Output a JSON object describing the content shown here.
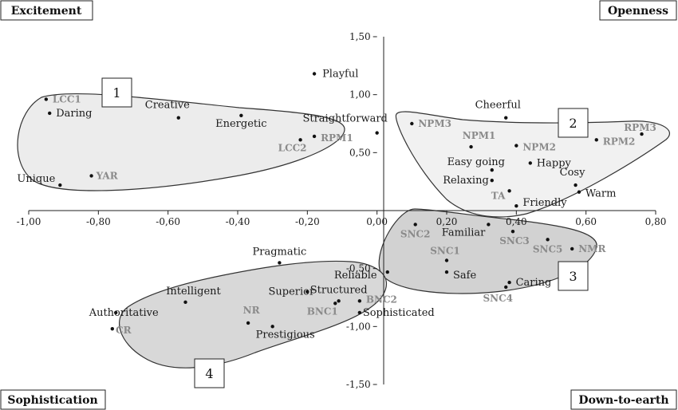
{
  "chart_data": {
    "type": "scatter",
    "xlim": [
      -1.0,
      0.8
    ],
    "ylim": [
      -1.5,
      1.5
    ],
    "x_ticks": [
      "-1,00",
      "-0,80",
      "-0,60",
      "-0,40",
      "-0,20",
      "0,00",
      "0,20",
      "0,40",
      "0,60",
      "0,80"
    ],
    "y_ticks": [
      "1,50",
      "1,00",
      "0,50",
      "0,00",
      "-0,50",
      "-1,00",
      "-1,50"
    ],
    "corners": {
      "top_left": "Excitement",
      "top_right": "Openness",
      "bottom_left": "Sophistication",
      "bottom_right": "Down-to-earth"
    },
    "clusters": [
      "1",
      "2",
      "3",
      "4"
    ],
    "points": [
      {
        "label": "LCC1",
        "x": -0.95,
        "y": 0.96,
        "style": "code"
      },
      {
        "label": "Daring",
        "x": -0.94,
        "y": 0.84,
        "style": "text"
      },
      {
        "label": "Unique",
        "x": -0.91,
        "y": 0.22,
        "style": "text"
      },
      {
        "label": "YAR",
        "x": -0.82,
        "y": 0.3,
        "style": "code"
      },
      {
        "label": "Creative",
        "x": -0.57,
        "y": 0.8,
        "style": "text"
      },
      {
        "label": "Energetic",
        "x": -0.39,
        "y": 0.82,
        "style": "text"
      },
      {
        "label": "Playful",
        "x": -0.18,
        "y": 1.18,
        "style": "text"
      },
      {
        "label": "Straightforward",
        "x": 0.0,
        "y": 0.67,
        "style": "text"
      },
      {
        "label": "RPM1",
        "x": -0.18,
        "y": 0.64,
        "style": "code"
      },
      {
        "label": "LCC2",
        "x": -0.22,
        "y": 0.61,
        "style": "code"
      },
      {
        "label": "Cheerful",
        "x": 0.37,
        "y": 0.8,
        "style": "text"
      },
      {
        "label": "NPM3",
        "x": 0.1,
        "y": 0.75,
        "style": "code"
      },
      {
        "label": "NPM1",
        "x": 0.27,
        "y": 0.55,
        "style": "code"
      },
      {
        "label": "NPM2",
        "x": 0.4,
        "y": 0.56,
        "style": "code"
      },
      {
        "label": "RPM3",
        "x": 0.76,
        "y": 0.66,
        "style": "code"
      },
      {
        "label": "RPM2",
        "x": 0.63,
        "y": 0.61,
        "style": "code"
      },
      {
        "label": "Easy going",
        "x": 0.33,
        "y": 0.35,
        "style": "text"
      },
      {
        "label": "Happy",
        "x": 0.44,
        "y": 0.41,
        "style": "text"
      },
      {
        "label": "Relaxing",
        "x": 0.33,
        "y": 0.26,
        "style": "text"
      },
      {
        "label": "Cosy",
        "x": 0.57,
        "y": 0.22,
        "style": "text"
      },
      {
        "label": "Warm",
        "x": 0.58,
        "y": 0.16,
        "style": "text"
      },
      {
        "label": "TA",
        "x": 0.38,
        "y": 0.17,
        "style": "code"
      },
      {
        "label": "Friendly",
        "x": 0.4,
        "y": 0.04,
        "style": "text"
      },
      {
        "label": "SNC2",
        "x": 0.11,
        "y": -0.12,
        "style": "code"
      },
      {
        "label": "Familiar",
        "x": 0.32,
        "y": -0.12,
        "style": "text"
      },
      {
        "label": "SNC3",
        "x": 0.39,
        "y": -0.18,
        "style": "code"
      },
      {
        "label": "SNC5",
        "x": 0.49,
        "y": -0.25,
        "style": "code"
      },
      {
        "label": "NMR",
        "x": 0.56,
        "y": -0.33,
        "style": "code"
      },
      {
        "label": "SNC1",
        "x": 0.2,
        "y": -0.43,
        "style": "code"
      },
      {
        "label": "Safe",
        "x": 0.2,
        "y": -0.53,
        "style": "text"
      },
      {
        "label": "Reliable",
        "x": 0.03,
        "y": -0.53,
        "style": "text"
      },
      {
        "label": "Caring",
        "x": 0.38,
        "y": -0.62,
        "style": "text"
      },
      {
        "label": "SNC4",
        "x": 0.37,
        "y": -0.66,
        "style": "code"
      },
      {
        "label": "Pragmatic",
        "x": -0.28,
        "y": -0.45,
        "style": "text"
      },
      {
        "label": "Intelligent",
        "x": -0.55,
        "y": -0.79,
        "style": "text"
      },
      {
        "label": "Superior",
        "x": -0.2,
        "y": -0.7,
        "style": "text"
      },
      {
        "label": "Structured",
        "x": -0.11,
        "y": -0.78,
        "style": "text"
      },
      {
        "label": "BNC2",
        "x": -0.05,
        "y": -0.78,
        "style": "code"
      },
      {
        "label": "BNC1",
        "x": -0.12,
        "y": -0.8,
        "style": "code"
      },
      {
        "label": "Authoritative",
        "x": -0.75,
        "y": -0.88,
        "style": "text"
      },
      {
        "label": "NR",
        "x": -0.37,
        "y": -0.97,
        "style": "code"
      },
      {
        "label": "CR",
        "x": -0.76,
        "y": -1.02,
        "style": "code"
      },
      {
        "label": "Prestigious",
        "x": -0.3,
        "y": -1.0,
        "style": "text"
      },
      {
        "label": "Sophisticated",
        "x": -0.05,
        "y": -0.88,
        "style": "text"
      }
    ]
  }
}
